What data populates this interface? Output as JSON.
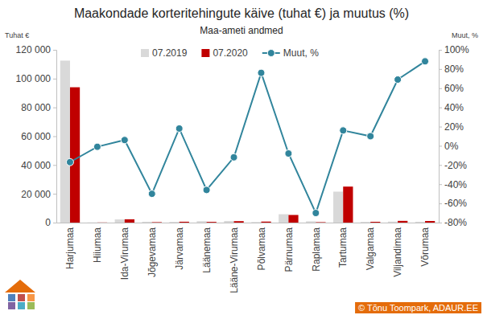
{
  "chart_data": {
    "type": "bar",
    "title": "Maakondade korteritehingute käive (tuhat €) ja muutus (%)",
    "subtitle": "Maa-ameti andmed",
    "y_label": "Tuhat €",
    "y2_label": "Muut, %",
    "annotations": [
      "© Tõnu Toompark, ADAUR.EE"
    ],
    "categories": [
      "Harjumaa",
      "Hiiumaa",
      "Ida-Virumaa",
      "Jõgevamaa",
      "Järvamaa",
      "Läänemaa",
      "Lääne-Virumaa",
      "Põlvamaa",
      "Pärnumaa",
      "Raplamaa",
      "Tartumaa",
      "Valgamaa",
      "Viljandimaa",
      "Võrumaa"
    ],
    "series": [
      {
        "name": "07.2019",
        "type": "bar",
        "color": "#d9d9d9",
        "values": [
          112500,
          100,
          2200,
          600,
          500,
          1000,
          1100,
          400,
          5800,
          900,
          21500,
          500,
          700,
          600
        ]
      },
      {
        "name": "07.2020",
        "type": "bar",
        "color": "#c00000",
        "values": [
          94000,
          100,
          2300,
          300,
          600,
          500,
          1000,
          700,
          5300,
          300,
          25000,
          550,
          1200,
          1100
        ]
      },
      {
        "name": "Muut, %",
        "type": "line",
        "axis": "y2",
        "color": "#31859c",
        "marker": "circle",
        "values": [
          -17,
          -1,
          6,
          -50,
          18,
          -46,
          -12,
          76,
          -8,
          -70,
          16,
          10,
          69,
          88
        ]
      }
    ],
    "ylim": [
      0,
      120000
    ],
    "yticks": [
      0,
      {
        "value": 20000,
        "label": "20 000"
      },
      {
        "value": 40000,
        "label": "40 000"
      },
      {
        "value": 60000,
        "label": "60 000"
      },
      {
        "value": 80000,
        "label": "80 000"
      },
      {
        "value": 100000,
        "label": "100 000"
      },
      {
        "value": 120000,
        "label": "120 000"
      }
    ],
    "y2lim": [
      -80,
      100
    ],
    "y2ticks": [
      {
        "value": -80,
        "label": "-80%"
      },
      {
        "value": -60,
        "label": "-60%"
      },
      {
        "value": -40,
        "label": "-40%"
      },
      {
        "value": -20,
        "label": "-20%"
      },
      {
        "value": 0,
        "label": "0%"
      },
      {
        "value": 20,
        "label": "20%"
      },
      {
        "value": 40,
        "label": "40%"
      },
      {
        "value": 60,
        "label": "60%"
      },
      {
        "value": 80,
        "label": "80%"
      },
      {
        "value": 100,
        "label": "100%"
      }
    ],
    "grid": false,
    "legend": "top"
  }
}
